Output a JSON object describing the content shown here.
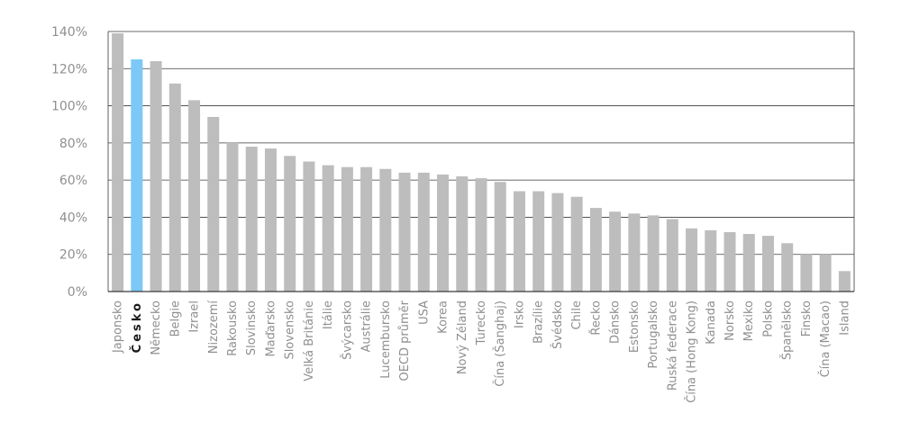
{
  "chart_data": {
    "type": "bar",
    "title": "",
    "xlabel": "",
    "ylabel": "",
    "ylim": [
      0,
      140
    ],
    "y_tick_values": [
      0,
      20,
      40,
      60,
      80,
      100,
      120,
      140
    ],
    "y_tick_labels": [
      "0%",
      "20%",
      "40%",
      "60%",
      "80%",
      "100%",
      "120%",
      "140%"
    ],
    "grid": true,
    "legend": "none",
    "highlight_category": "Česko",
    "colors": {
      "bar": "#bdbdbd",
      "highlight": "#7cc8f7",
      "grid": "#3a3a3a",
      "axis": "#3a3a3a",
      "tick_text": "#8f8f8f"
    },
    "categories": [
      "Japonsko",
      "Česko",
      "Německo",
      "Belgie",
      "Izrael",
      "Nizozemí",
      "Rakousko",
      "Slovinsko",
      "Maďarsko",
      "Slovensko",
      "Velká Británie",
      "Itálie",
      "Švýcarsko",
      "Austrálie",
      "Lucembursko",
      "OECD průměr",
      "USA",
      "Korea",
      "Nový Zéland",
      "Turecko",
      "Čína (Šanghaj)",
      "Irsko",
      "Brazílie",
      "Švédsko",
      "Chile",
      "Řecko",
      "Dánsko",
      "Estonsko",
      "Portugalsko",
      "Ruská federace",
      "Čína (Hong Kong)",
      "Kanada",
      "Norsko",
      "Mexiko",
      "Polsko",
      "Španělsko",
      "Finsko",
      "Čína (Macao)",
      "Island"
    ],
    "values": [
      139,
      125,
      124,
      112,
      103,
      94,
      80,
      78,
      77,
      73,
      70,
      68,
      67,
      67,
      66,
      64,
      64,
      63,
      62,
      61,
      59,
      54,
      54,
      53,
      51,
      45,
      43,
      42,
      41,
      39,
      34,
      33,
      32,
      31,
      30,
      26,
      20,
      20,
      11
    ]
  }
}
